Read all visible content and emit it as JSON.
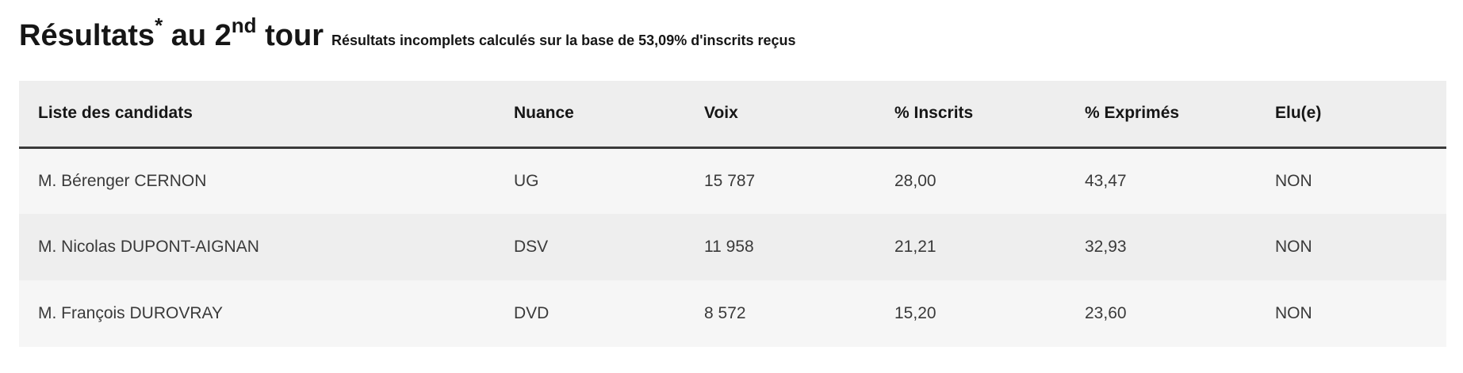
{
  "heading": {
    "title_main": "Résultats",
    "title_star": "*",
    "title_mid": " au 2",
    "title_sup": "nd",
    "title_end": " tour",
    "subtitle": "Résultats incomplets calculés sur la base de 53,09% d'inscrits reçus"
  },
  "table": {
    "headers": {
      "candidates": "Liste des candidats",
      "nuance": "Nuance",
      "voix": "Voix",
      "inscrits": "% Inscrits",
      "exprimes": "% Exprimés",
      "elu": "Elu(e)"
    },
    "rows": [
      {
        "candidate": "M. Bérenger CERNON",
        "nuance": "UG",
        "voix": "15 787",
        "inscrits": "28,00",
        "exprimes": "43,47",
        "elu": "NON"
      },
      {
        "candidate": "M. Nicolas DUPONT-AIGNAN",
        "nuance": "DSV",
        "voix": "11 958",
        "inscrits": "21,21",
        "exprimes": "32,93",
        "elu": "NON"
      },
      {
        "candidate": "M. François DUROVRAY",
        "nuance": "DVD",
        "voix": "8 572",
        "inscrits": "15,20",
        "exprimes": "23,60",
        "elu": "NON"
      }
    ]
  }
}
